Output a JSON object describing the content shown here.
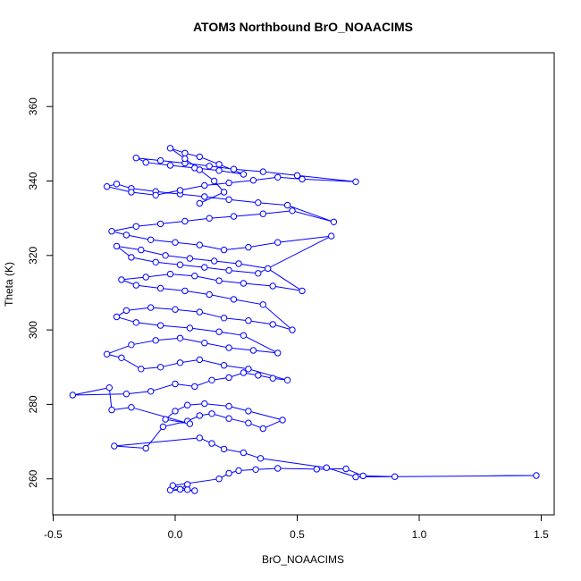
{
  "chart_data": {
    "type": "line",
    "title": "ATOM3 Northbound BrO_NOAACIMS",
    "xlabel": "BrO_NOAACIMS",
    "ylabel": "Theta (K)",
    "xlim": [
      -0.5,
      1.5
    ],
    "ylim": [
      255,
      370
    ],
    "x_ticks": [
      -0.5,
      0.0,
      0.5,
      1.0,
      1.5
    ],
    "x_tick_labels": [
      "-0.5",
      "0.0",
      "0.5",
      "1.0",
      "1.5"
    ],
    "y_ticks": [
      260,
      280,
      300,
      320,
      340,
      360
    ],
    "y_tick_labels": [
      "260",
      "280",
      "300",
      "320",
      "340",
      "360"
    ],
    "grid": false,
    "marker": "open-circle",
    "color": "#0000ff",
    "series": [
      {
        "x": [
          0.05,
          0.02,
          -0.02,
          0.08,
          0.05,
          -0.01,
          0.18,
          0.22,
          0.26,
          0.33,
          0.42,
          0.58,
          0.7,
          0.77,
          0.9,
          1.48,
          0.74,
          0.62,
          0.35,
          0.28,
          0.2,
          0.15,
          0.1,
          -0.25,
          -0.12,
          -0.05,
          0.05,
          0.1,
          0.15,
          0.22,
          0.3,
          0.36,
          0.44,
          0.3,
          0.22,
          0.12,
          0.05,
          0.0,
          -0.04,
          0.06,
          -0.18,
          -0.26,
          -0.27,
          -0.42,
          -0.2,
          -0.1,
          0.0,
          0.08,
          0.15,
          0.22,
          0.28,
          0.34,
          0.4,
          0.46,
          0.3,
          0.2,
          0.1,
          0.02,
          -0.06,
          -0.14,
          -0.22,
          -0.28,
          -0.18,
          -0.08,
          0.02,
          0.12,
          0.22,
          0.32,
          0.42,
          0.28,
          0.18,
          0.06,
          -0.06,
          -0.16,
          -0.24,
          -0.2,
          -0.1,
          0.0,
          0.1,
          0.2,
          0.3,
          0.4,
          0.48,
          0.36,
          0.24,
          0.14,
          0.04,
          -0.06,
          -0.16,
          -0.22,
          -0.12,
          -0.02,
          0.08,
          0.18,
          0.28,
          0.4,
          0.52,
          0.38,
          0.26,
          0.16,
          0.06,
          -0.04,
          -0.14,
          -0.24,
          -0.18,
          -0.08,
          0.02,
          0.12,
          0.22,
          0.34,
          0.64,
          0.42,
          0.3,
          0.2,
          0.1,
          0.0,
          -0.1,
          -0.2,
          -0.26,
          -0.16,
          -0.06,
          0.04,
          0.14,
          0.24,
          0.36,
          0.48,
          0.65,
          0.46,
          0.34,
          0.22,
          0.12,
          0.02,
          -0.08,
          -0.18,
          -0.24,
          -0.28,
          -0.18,
          -0.08,
          0.02,
          0.12,
          0.22,
          0.32,
          0.42,
          0.52,
          0.74,
          0.5,
          0.36,
          0.24,
          0.14,
          0.04,
          -0.06,
          -0.16,
          -0.12,
          -0.02,
          0.08,
          0.18,
          0.28,
          0.18,
          0.1,
          0.04,
          -0.02,
          0.04,
          0.1,
          0.16,
          0.2,
          0.1
        ],
        "y": [
          258.5,
          257.2,
          257.0,
          256.8,
          257.1,
          258.2,
          260.0,
          261.5,
          262.2,
          262.5,
          262.8,
          262.6,
          262.7,
          260.8,
          260.6,
          260.9,
          260.5,
          263.0,
          265.5,
          267.0,
          268.0,
          269.5,
          271.0,
          268.8,
          268.2,
          274.0,
          275.5,
          277.0,
          277.5,
          276.2,
          275.0,
          273.5,
          275.8,
          278.2,
          279.5,
          280.2,
          279.8,
          278.2,
          276.0,
          274.8,
          279.2,
          278.5,
          284.5,
          282.5,
          282.8,
          283.5,
          285.5,
          284.8,
          286.5,
          287.2,
          288.5,
          287.8,
          287.0,
          286.5,
          289.5,
          290.5,
          292.0,
          291.2,
          290.0,
          289.5,
          292.5,
          293.5,
          296.0,
          297.2,
          297.8,
          296.5,
          295.2,
          294.5,
          293.8,
          298.5,
          299.5,
          300.5,
          301.2,
          302.0,
          303.5,
          305.2,
          306.0,
          305.5,
          304.8,
          303.2,
          302.5,
          301.5,
          300.0,
          306.8,
          308.2,
          309.5,
          310.5,
          311.2,
          312.0,
          313.5,
          314.2,
          315.0,
          314.5,
          313.2,
          312.5,
          311.8,
          310.5,
          316.5,
          317.8,
          318.5,
          319.2,
          320.0,
          321.5,
          322.5,
          319.5,
          318.2,
          317.5,
          316.8,
          316.0,
          315.2,
          325.2,
          323.5,
          322.2,
          321.5,
          322.8,
          323.5,
          324.2,
          325.5,
          326.5,
          327.8,
          328.5,
          329.2,
          330.0,
          330.5,
          331.2,
          332.0,
          329.0,
          333.5,
          334.2,
          335.0,
          335.8,
          336.5,
          337.2,
          338.0,
          339.2,
          338.5,
          337.0,
          336.2,
          337.5,
          338.8,
          339.5,
          340.2,
          341.0,
          340.5,
          339.8,
          341.5,
          342.5,
          343.2,
          344.0,
          344.8,
          345.5,
          346.2,
          345.0,
          344.2,
          343.5,
          342.8,
          341.8,
          344.5,
          346.5,
          347.5,
          348.8,
          346.0,
          343.0,
          340.0,
          337.0,
          334.0
        ]
      }
    ]
  }
}
